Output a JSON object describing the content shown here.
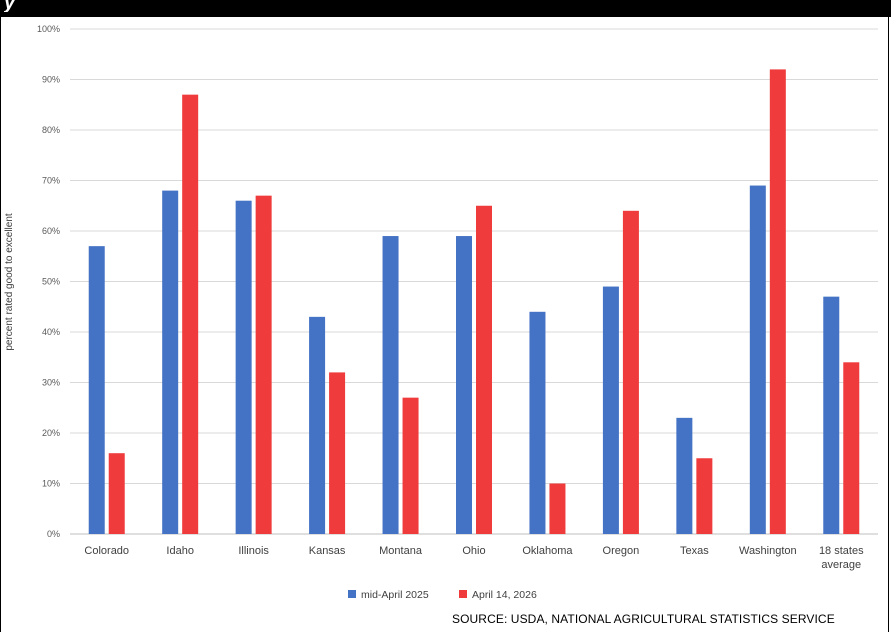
{
  "chart_data": {
    "type": "bar",
    "ylabel": "percent rated good to excellent",
    "xlabel": "",
    "ylim": [
      0,
      100
    ],
    "yticks": [
      0,
      10,
      20,
      30,
      40,
      50,
      60,
      70,
      80,
      90,
      100
    ],
    "ytick_suffix": "%",
    "categories": [
      "Colorado",
      "Idaho",
      "Illinois",
      "Kansas",
      "Montana",
      "Ohio",
      "Oklahoma",
      "Oregon",
      "Texas",
      "Washington",
      "18 states average"
    ],
    "category_lines": [
      [
        "Colorado"
      ],
      [
        "Idaho"
      ],
      [
        "Illinois"
      ],
      [
        "Kansas"
      ],
      [
        "Montana"
      ],
      [
        "Ohio"
      ],
      [
        "Oklahoma"
      ],
      [
        "Oregon"
      ],
      [
        "Texas"
      ],
      [
        "Washington"
      ],
      [
        "18 states",
        "average"
      ]
    ],
    "series": [
      {
        "name": "mid-April 2025",
        "color": "#4472c4",
        "values": [
          57,
          68,
          66,
          43,
          59,
          59,
          44,
          49,
          23,
          69,
          47
        ]
      },
      {
        "name": "April 14, 2026",
        "color": "#ef3b3b",
        "values": [
          16,
          87,
          67,
          32,
          27,
          65,
          10,
          64,
          15,
          92,
          34
        ]
      }
    ],
    "grid": true,
    "legend_position": "bottom"
  },
  "source_text": "SOURCE: USDA, NATIONAL AGRICULTURAL STATISTICS SERVICE"
}
